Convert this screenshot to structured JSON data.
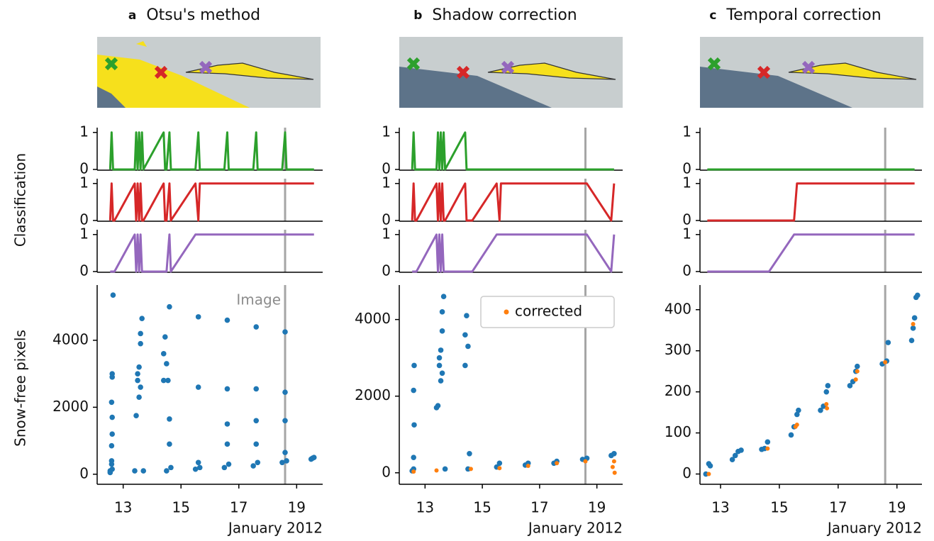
{
  "chart_data": [
    {
      "type": "line",
      "panel_label": "a",
      "title": "Otsu's method",
      "color": "#2ca02c",
      "xlim": [
        12.1,
        19.9
      ],
      "ylim": [
        -0.02,
        1.13
      ],
      "yticks": [
        0,
        1
      ],
      "vline": 18.6,
      "x": [
        12.55,
        12.6,
        12.65,
        12.7,
        13.4,
        13.45,
        13.5,
        13.55,
        13.6,
        13.65,
        13.7,
        14.4,
        14.45,
        14.5,
        14.6,
        14.65,
        15.5,
        15.6,
        15.65,
        16.5,
        16.6,
        16.65,
        17.5,
        17.6,
        17.65,
        18.5,
        18.6,
        18.65,
        19.5,
        19.6
      ],
      "values": [
        0,
        1,
        0,
        0,
        0,
        1,
        0,
        1,
        0,
        1,
        0,
        1,
        0,
        0,
        1,
        0,
        0,
        1,
        0,
        0,
        1,
        0,
        0,
        1,
        0,
        0,
        1,
        0,
        0,
        0
      ]
    },
    {
      "type": "line",
      "ylabel": "Classification",
      "color": "#d62728",
      "xlim": [
        12.1,
        19.9
      ],
      "ylim": [
        -0.02,
        1.13
      ],
      "yticks": [
        0,
        1
      ],
      "vline": 18.6,
      "x": [
        12.55,
        12.6,
        12.65,
        12.7,
        13.4,
        13.45,
        13.5,
        13.55,
        13.6,
        13.65,
        13.7,
        14.4,
        14.45,
        14.5,
        14.6,
        14.65,
        15.5,
        15.6,
        15.65,
        16.5,
        16.6,
        16.65,
        17.5,
        17.6,
        17.65,
        18.5,
        18.6,
        18.65,
        19.5,
        19.6
      ],
      "values": [
        0,
        1,
        0,
        0,
        1,
        0,
        1,
        0,
        1,
        0,
        0,
        1,
        0,
        0,
        1,
        0,
        1,
        0,
        1,
        1,
        1,
        1,
        1,
        1,
        1,
        1,
        1,
        1,
        1,
        1
      ]
    },
    {
      "type": "line",
      "color": "#9467bd",
      "xlim": [
        12.1,
        19.9
      ],
      "ylim": [
        -0.02,
        1.13
      ],
      "yticks": [
        0,
        1
      ],
      "vline": 18.6,
      "x": [
        12.55,
        12.6,
        12.65,
        12.7,
        13.4,
        13.45,
        13.5,
        13.55,
        13.6,
        13.65,
        13.7,
        14.4,
        14.45,
        14.5,
        14.6,
        14.65,
        15.5,
        15.6,
        15.65,
        16.5,
        16.6,
        16.65,
        17.5,
        17.6,
        17.65,
        18.5,
        18.6,
        18.65,
        19.5,
        19.6
      ],
      "values": [
        0,
        0,
        0,
        0,
        1,
        0,
        1,
        0,
        1,
        0,
        0,
        0,
        0,
        0,
        1,
        0,
        1,
        1,
        1,
        1,
        1,
        1,
        1,
        1,
        1,
        1,
        1,
        1,
        1,
        1
      ]
    },
    {
      "type": "scatter",
      "ylabel": "Snow-free pixels",
      "xlabel": "January 2012",
      "annotation": "Image",
      "xlim": [
        12.1,
        19.9
      ],
      "ylim": [
        -300,
        5650
      ],
      "xticks": [
        13,
        15,
        17,
        19
      ],
      "yticks": [
        0,
        2000,
        4000
      ],
      "vline": 18.6,
      "series": [
        {
          "color": "#1f77b4",
          "x": [
            12.55,
            12.6,
            12.62,
            12.62,
            12.6,
            12.62,
            12.62,
            12.6,
            12.6,
            12.62,
            12.55,
            12.65,
            13.4,
            13.45,
            13.5,
            13.5,
            13.55,
            13.6,
            13.6,
            13.65,
            13.55,
            13.7,
            13.6,
            14.4,
            14.45,
            14.4,
            14.5,
            14.55,
            14.6,
            14.6,
            14.6,
            14.5,
            14.65,
            15.6,
            15.6,
            15.5,
            15.6,
            15.65,
            16.6,
            16.6,
            16.6,
            16.6,
            16.5,
            16.65,
            17.6,
            17.6,
            17.6,
            17.6,
            17.5,
            17.65,
            18.6,
            18.6,
            18.6,
            18.6,
            18.5,
            18.65,
            19.5,
            19.6,
            19.55
          ],
          "values": [
            100,
            300,
            3000,
            2900,
            2150,
            1700,
            1200,
            850,
            400,
            150,
            50,
            5350,
            100,
            1750,
            2800,
            3000,
            3200,
            2600,
            4200,
            4650,
            2300,
            100,
            3900,
            3600,
            4100,
            2800,
            3300,
            2800,
            5000,
            1650,
            900,
            100,
            200,
            4700,
            2600,
            150,
            350,
            200,
            4600,
            2550,
            1500,
            900,
            200,
            300,
            4400,
            2550,
            1600,
            900,
            250,
            350,
            4250,
            2450,
            1600,
            650,
            350,
            400,
            450,
            500,
            480
          ]
        }
      ]
    },
    {
      "type": "line",
      "panel_label": "b",
      "title": "Shadow correction",
      "color": "#2ca02c",
      "xlim": [
        12.1,
        19.9
      ],
      "ylim": [
        -0.02,
        1.13
      ],
      "yticks": [
        0,
        1
      ],
      "vline": 18.6,
      "x": [
        12.55,
        12.6,
        12.65,
        12.7,
        13.4,
        13.45,
        13.5,
        13.55,
        13.6,
        13.65,
        13.7,
        14.4,
        14.45,
        14.5,
        14.6,
        14.65,
        15.5,
        15.6,
        15.65,
        16.5,
        16.6,
        16.65,
        17.5,
        17.6,
        17.65,
        18.5,
        18.6,
        18.65,
        19.5,
        19.6
      ],
      "values": [
        0,
        1,
        0,
        0,
        0,
        1,
        0,
        1,
        0,
        1,
        0,
        1,
        0,
        0,
        0,
        0,
        0,
        0,
        0,
        0,
        0,
        0,
        0,
        0,
        0,
        0,
        0,
        0,
        0,
        0
      ]
    },
    {
      "type": "line",
      "color": "#d62728",
      "xlim": [
        12.1,
        19.9
      ],
      "ylim": [
        -0.02,
        1.13
      ],
      "yticks": [
        0,
        1
      ],
      "vline": 18.6,
      "x": [
        12.55,
        12.6,
        12.65,
        12.7,
        13.4,
        13.45,
        13.5,
        13.55,
        13.6,
        13.65,
        13.7,
        14.4,
        14.45,
        14.5,
        14.6,
        14.65,
        15.5,
        15.6,
        15.65,
        16.5,
        16.6,
        16.65,
        17.5,
        17.6,
        17.65,
        18.5,
        18.6,
        18.65,
        19.5,
        19.6
      ],
      "values": [
        0,
        1,
        0,
        0,
        1,
        0,
        1,
        0,
        1,
        0,
        0,
        1,
        0,
        0,
        0,
        0,
        1,
        0,
        1,
        1,
        1,
        1,
        1,
        1,
        1,
        1,
        1,
        1,
        0,
        1
      ]
    },
    {
      "type": "line",
      "color": "#9467bd",
      "xlim": [
        12.1,
        19.9
      ],
      "ylim": [
        -0.02,
        1.13
      ],
      "yticks": [
        0,
        1
      ],
      "vline": 18.6,
      "x": [
        12.55,
        12.6,
        12.65,
        12.7,
        13.4,
        13.45,
        13.5,
        13.55,
        13.6,
        13.65,
        13.7,
        14.4,
        14.45,
        14.5,
        14.6,
        14.65,
        15.5,
        15.6,
        15.65,
        16.5,
        16.6,
        16.65,
        17.5,
        17.6,
        17.65,
        18.5,
        18.6,
        18.65,
        19.5,
        19.6
      ],
      "values": [
        0,
        0,
        0,
        0,
        1,
        0,
        1,
        0,
        1,
        0,
        0,
        0,
        0,
        0,
        0,
        0,
        1,
        1,
        1,
        1,
        1,
        1,
        1,
        1,
        1,
        1,
        1,
        1,
        0,
        1
      ]
    },
    {
      "type": "scatter",
      "xlabel": "January 2012",
      "legend": "upper right",
      "xlim": [
        12.1,
        19.9
      ],
      "ylim": [
        -300,
        4900
      ],
      "xticks": [
        13,
        15,
        17,
        19
      ],
      "yticks": [
        0,
        2000,
        4000
      ],
      "vline": 18.6,
      "series": [
        {
          "color": "#1f77b4",
          "x": [
            12.55,
            12.6,
            12.62,
            12.6,
            12.62,
            12.6,
            13.45,
            13.4,
            13.5,
            13.5,
            13.55,
            13.6,
            13.6,
            13.65,
            13.55,
            13.6,
            13.7,
            14.4,
            14.45,
            14.4,
            14.5,
            14.55,
            14.5,
            15.5,
            15.6,
            16.5,
            16.6,
            17.5,
            17.6,
            18.5,
            18.65,
            19.5,
            19.6
          ],
          "values": [
            50,
            100,
            2800,
            2150,
            1250,
            400,
            1750,
            1700,
            2800,
            3000,
            3200,
            2600,
            4200,
            4600,
            2400,
            3700,
            100,
            3600,
            4100,
            2800,
            3300,
            500,
            100,
            150,
            250,
            200,
            250,
            250,
            300,
            350,
            380,
            450,
            500
          ]
        },
        {
          "name": "corrected",
          "color": "#ff7f0e",
          "x": [
            12.6,
            13.4,
            14.6,
            15.6,
            16.6,
            17.6,
            18.6,
            19.6,
            19.62,
            19.55
          ],
          "values": [
            30,
            60,
            100,
            120,
            180,
            250,
            300,
            300,
            0,
            150
          ]
        }
      ]
    },
    {
      "type": "line",
      "panel_label": "c",
      "title": "Temporal correction",
      "color": "#2ca02c",
      "xlim": [
        12.3,
        19.85
      ],
      "ylim": [
        -0.02,
        1.13
      ],
      "yticks": [
        0,
        1
      ],
      "vline": 18.6,
      "x": [
        12.55,
        12.6,
        12.65,
        12.7,
        13.4,
        13.45,
        13.5,
        13.55,
        13.6,
        13.65,
        13.7,
        14.4,
        14.45,
        14.5,
        14.6,
        14.65,
        15.5,
        15.6,
        15.65,
        16.5,
        16.6,
        16.65,
        17.5,
        17.6,
        17.65,
        18.5,
        18.6,
        18.65,
        19.5,
        19.6
      ],
      "values": [
        0,
        0,
        0,
        0,
        0,
        0,
        0,
        0,
        0,
        0,
        0,
        0,
        0,
        0,
        0,
        0,
        0,
        0,
        0,
        0,
        0,
        0,
        0,
        0,
        0,
        0,
        0,
        0,
        0,
        0
      ]
    },
    {
      "type": "line",
      "color": "#d62728",
      "xlim": [
        12.3,
        19.85
      ],
      "ylim": [
        -0.02,
        1.13
      ],
      "yticks": [
        0,
        1
      ],
      "vline": 18.6,
      "x": [
        12.55,
        12.6,
        12.65,
        12.7,
        13.4,
        13.45,
        13.5,
        13.55,
        13.6,
        13.65,
        13.7,
        14.4,
        14.45,
        14.5,
        14.6,
        14.65,
        15.5,
        15.6,
        15.65,
        16.5,
        16.6,
        16.65,
        17.5,
        17.6,
        17.65,
        18.5,
        18.6,
        18.65,
        19.5,
        19.6
      ],
      "values": [
        0,
        0,
        0,
        0,
        0,
        0,
        0,
        0,
        0,
        0,
        0,
        0,
        0,
        0,
        0,
        0,
        0,
        1,
        1,
        1,
        1,
        1,
        1,
        1,
        1,
        1,
        1,
        1,
        1,
        1
      ]
    },
    {
      "type": "line",
      "color": "#9467bd",
      "xlim": [
        12.3,
        19.85
      ],
      "ylim": [
        -0.02,
        1.13
      ],
      "yticks": [
        0,
        1
      ],
      "vline": 18.6,
      "x": [
        12.55,
        12.6,
        12.65,
        12.7,
        13.4,
        13.45,
        13.5,
        13.55,
        13.6,
        13.65,
        13.7,
        14.4,
        14.45,
        14.5,
        14.6,
        14.65,
        15.5,
        15.6,
        15.65,
        16.5,
        16.6,
        16.65,
        17.5,
        17.6,
        17.65,
        18.5,
        18.6,
        18.65,
        19.5,
        19.6
      ],
      "values": [
        0,
        0,
        0,
        0,
        0,
        0,
        0,
        0,
        0,
        0,
        0,
        0,
        0,
        0,
        0,
        0,
        1,
        1,
        1,
        1,
        1,
        1,
        1,
        1,
        1,
        1,
        1,
        1,
        1,
        1
      ]
    },
    {
      "type": "scatter",
      "xlabel": "January 2012",
      "xlim": [
        12.3,
        19.85
      ],
      "ylim": [
        -25,
        460
      ],
      "xticks": [
        13,
        15,
        17,
        19
      ],
      "yticks": [
        0,
        100,
        200,
        300,
        400
      ],
      "vline": 18.6,
      "series": [
        {
          "color": "#1f77b4",
          "x": [
            12.5,
            12.6,
            12.65,
            13.4,
            13.5,
            13.6,
            13.7,
            14.4,
            14.5,
            14.6,
            15.4,
            15.5,
            15.6,
            15.65,
            16.4,
            16.5,
            16.6,
            16.65,
            17.4,
            17.5,
            17.6,
            17.65,
            18.5,
            18.65,
            18.7,
            19.5,
            19.55,
            19.6,
            19.65,
            19.7
          ],
          "values": [
            0,
            25,
            20,
            35,
            45,
            55,
            58,
            60,
            62,
            78,
            95,
            115,
            145,
            155,
            155,
            165,
            200,
            215,
            215,
            225,
            250,
            262,
            268,
            275,
            320,
            325,
            355,
            380,
            430,
            435
          ]
        },
        {
          "color": "#ff7f0e",
          "x": [
            12.6,
            14.6,
            15.6,
            15.55,
            16.6,
            16.62,
            17.6,
            17.65,
            18.6,
            19.55
          ],
          "values": [
            0,
            62,
            120,
            115,
            170,
            160,
            230,
            250,
            272,
            365
          ]
        }
      ]
    }
  ]
}
